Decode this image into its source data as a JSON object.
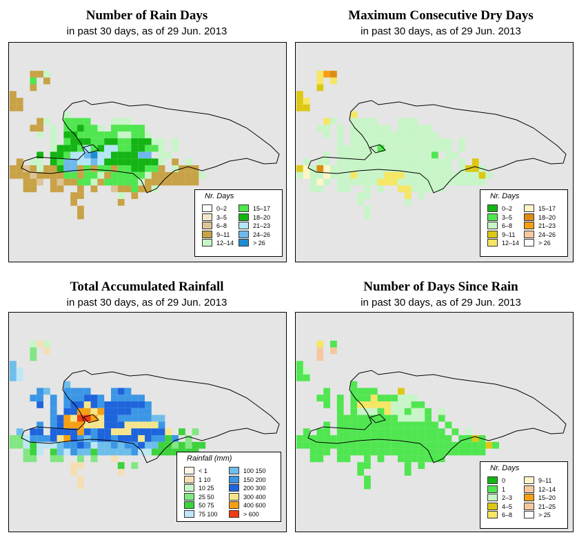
{
  "panels": [
    {
      "title": "Number of Rain Days",
      "subtitle": "in past 30 days, as of  29 Jun. 2013",
      "legend": {
        "title": "Nr. Days",
        "entries": [
          {
            "label": "0–2",
            "color": "#ffffff"
          },
          {
            "label": "3–5",
            "color": "#f2e6cc"
          },
          {
            "label": "6–8",
            "color": "#dcc496"
          },
          {
            "label": "9–11",
            "color": "#c8a246"
          },
          {
            "label": "12–14",
            "color": "#c8f5c8"
          },
          {
            "label": "15–17",
            "color": "#50e650"
          },
          {
            "label": "18–20",
            "color": "#14b414"
          },
          {
            "label": "21–23",
            "color": "#b4e6f5"
          },
          {
            "label": "24–26",
            "color": "#6eb9eb"
          },
          {
            "label": "> 26",
            "color": "#1e8cd2"
          }
        ]
      },
      "grid_rows": [
        ".........................................",
        "...334...................................",
        "...5.3...................................",
        "...3.....................................",
        "3........................................",
        "33.......................................",
        "33.......................................",
        "........4................................",
        "....34..5555...444.......................",
        "...33.4.556554.55555.....................",
        "....4.4.6655555544554....................",
        "......4.566655665566644.4................",
        "......46665756775566554.4................",
        "....6.665778977666688.44.................",
        ".3.44.65887787666666664.3.4..............",
        "33234336883535535566553.4333.............",
        "33323333553554355555433333334............",
        "..332.3233554355555433333333.............",
        "..33..33..3.3..2335334...................",
        ".........33.....4.3......................",
        ".........3......3........................",
        "..........3..............................",
        "..........3.............................."
      ]
    },
    {
      "title": "Maximum Consecutive Dry Days",
      "subtitle": "in past 30 days, as of  29 Jun. 2013",
      "legend": {
        "title": "Nr. Days",
        "entries": [
          {
            "label": "0–2",
            "color": "#14b414"
          },
          {
            "label": "3–5",
            "color": "#50e650"
          },
          {
            "label": "6–8",
            "color": "#c8f5c8"
          },
          {
            "label": "9–11",
            "color": "#dcc814"
          },
          {
            "label": "12–14",
            "color": "#f5e664"
          },
          {
            "label": "15–17",
            "color": "#fff5c8"
          },
          {
            "label": "18–20",
            "color": "#dc8c14"
          },
          {
            "label": "21–23",
            "color": "#f5a014"
          },
          {
            "label": "24–26",
            "color": "#f5c8a0"
          },
          {
            "label": "> 26",
            "color": "#ffffff"
          }
        ]
      },
      "grid_rows": [
        ".........................................",
        "...476...................................",
        "...4.4...................................",
        "...3.....................................",
        "3........................................",
        "34.......................................",
        "33.......................................",
        "........4................................",
        "....42..2222...222.......................",
        "...22.2.222222.22222.....................",
        "....2.2.2222222222222....................",
        "......2.222222222222222.2................",
        "......22222212222222222.2................",
        "....2.222222222222221.22.................",
        ".2.22.22222222222222222.2.3..............",
        "35265222222222222222222.2332.............",
        "25225222422224442222222222232............",
        "..252.2222224442222222222222.............",
        "..22..22..2.2..4422222...................",
        ".........22.....4.2......................",
        ".........2......2........................",
        "..........2..............................",
        "..........2.............................."
      ]
    },
    {
      "title": "Total Accumulated Rainfall",
      "subtitle": "in past 30 days, as of  29 Jun. 2013",
      "legend": {
        "title": "Rainfall (mm)",
        "entries": [
          {
            "label": "< 1",
            "color": "#fff5e6"
          },
          {
            "label": "1   10",
            "color": "#f5deb4"
          },
          {
            "label": "10   25",
            "color": "#c8f5c8"
          },
          {
            "label": "25   50",
            "color": "#82e682"
          },
          {
            "label": "50   75",
            "color": "#3cd23c"
          },
          {
            "label": "75   100",
            "color": "#bee6f5"
          },
          {
            "label": "100  150",
            "color": "#6ebeeb"
          },
          {
            "label": "150  200",
            "color": "#3c96e6"
          },
          {
            "label": "200  300",
            "color": "#1e64dc"
          },
          {
            "label": "300  400",
            "color": "#f5e68c"
          },
          {
            "label": "400  600",
            "color": "#f5a014"
          },
          {
            "label": "> 600",
            "color": "#f03c14"
          }
        ]
      },
      "grid_rows": [
        ".........................................",
        "...212...................................",
        "...3.1...................................",
        "...3.....................................",
        "6........................................",
        "65.......................................",
        "65.......................................",
        "........6................................",
        "....76..7777...787.......................",
        "...77.7.777887.77777.....................",
        "....8.7.7889878888887....................",
        "......7.88aa9a8888777....................",
        "......78a9bba9887777766..................",
        "....7.78aaa999888999997..................",
        ".6.88.8888a8788999888889.4.3.............",
        "33577789a8767887888987747.3..............",
        "33545556778756676778664434344............",
        "..345.4657664666667554444444.............",
        "..33..33..3.3..1..........................",
        ".........11.....4.3......................",
        ".........1......1........................",
        "..........1..............................",
        "..........1.............................."
      ]
    },
    {
      "title": "Number of Days Since Rain",
      "subtitle": "in past 30 days, as of  29 Jun. 2013",
      "legend": {
        "title": "Nr. Days",
        "entries": [
          {
            "label": "0",
            "color": "#14b414"
          },
          {
            "label": "1",
            "color": "#50e650"
          },
          {
            "label": "2–3",
            "color": "#c8f5c8"
          },
          {
            "label": "4–5",
            "color": "#dcc814"
          },
          {
            "label": "6–8",
            "color": "#f5e664"
          },
          {
            "label": "9–11",
            "color": "#fff5c8"
          },
          {
            "label": "12–14",
            "color": "#f5c8a0"
          },
          {
            "label": "15–20",
            "color": "#f5a014"
          },
          {
            "label": "21–25",
            "color": "#f5c8a0"
          },
          {
            "label": "> 25",
            "color": "#ffffff"
          }
        ]
      },
      "grid_rows": [
        ".........................................",
        "...4.1...................................",
        "...8.8...................................",
        "...8.....................................",
        "1........................................",
        "12.......................................",
        "11.......................................",
        "........1................................",
        "....1...1111...3.........................",
        "...11.1.1114111222.......................",
        "....1.1.14444422211......................",
        "......1.122214221221.2...................",
        "......11111111122221.1...................",
        "....1.111111111111111.1..................",
        ".1.11.1111111111111111.1.2...............",
        "11111111111111111111111.1131.............",
        "111111111111111111111111111131...........",
        "..111.1111111111111111111111.............",
        "..11..11..1.1..1111111...................",
        ".........11.....1.1......................",
        ".........1......1........................",
        "..........1..............................",
        "..........1.............................."
      ]
    }
  ]
}
